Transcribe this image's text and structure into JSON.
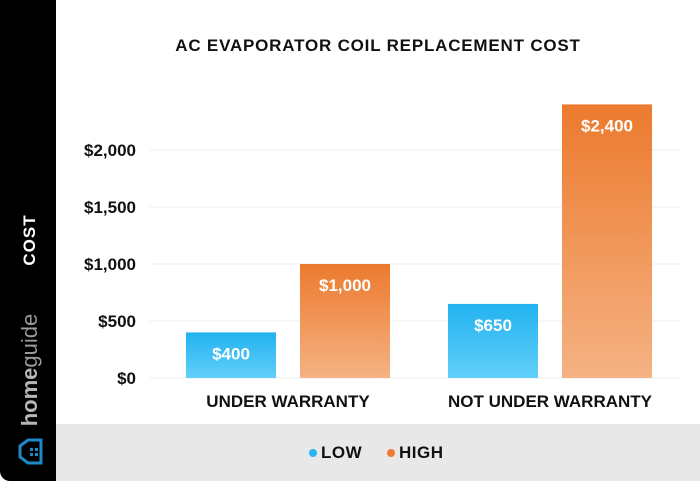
{
  "chart_data": {
    "type": "bar",
    "title": "AC EVAPORATOR COIL REPLACEMENT COST",
    "ylabel": "COST",
    "xlabel": "",
    "categories": [
      "UNDER WARRANTY",
      "NOT UNDER WARRANTY"
    ],
    "series": [
      {
        "name": "LOW",
        "values": [
          400,
          650
        ],
        "labels": [
          "$400",
          "$650"
        ],
        "color": "#29b6f0"
      },
      {
        "name": "HIGH",
        "values": [
          1000,
          2400
        ],
        "labels": [
          "$1,000",
          "$2,400"
        ],
        "color": "#ee7b30"
      }
    ],
    "ylim": [
      0,
      2400
    ],
    "yticks": [
      0,
      500,
      1000,
      1500,
      2000
    ],
    "ytick_labels": [
      "$0",
      "$500",
      "$1,000",
      "$1,500",
      "$2,000"
    ],
    "grid": true,
    "legend": "bottom"
  },
  "brand": {
    "text_light": "home",
    "text_bold": "guide",
    "icon": "house-icon"
  }
}
